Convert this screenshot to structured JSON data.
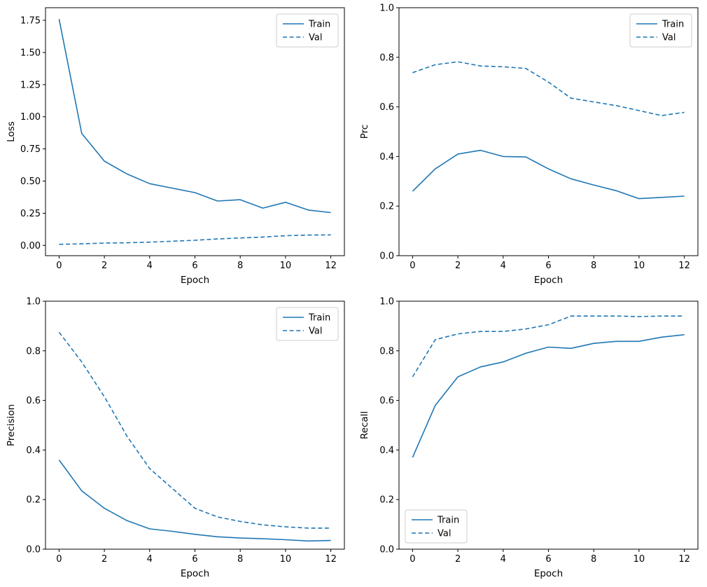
{
  "figure": {
    "background": "#ffffff",
    "line_color": "#1f77b4"
  },
  "chart_data": [
    {
      "type": "line",
      "title": "",
      "xlabel": "Epoch",
      "ylabel": "Loss",
      "color": "#1f77b4",
      "x": [
        0,
        1,
        2,
        3,
        4,
        5,
        6,
        7,
        8,
        9,
        10,
        11,
        12
      ],
      "xlim": [
        -0.6,
        12.6
      ],
      "ylim": [
        -0.08,
        1.848
      ],
      "xticks": [
        0,
        2,
        4,
        6,
        8,
        10,
        12
      ],
      "yticks": [
        0.0,
        0.25,
        0.5,
        0.75,
        1.0,
        1.25,
        1.5,
        1.75
      ],
      "ytick_labels": [
        "0.00",
        "0.25",
        "0.50",
        "0.75",
        "1.00",
        "1.25",
        "1.50",
        "1.75"
      ],
      "grid": false,
      "legend": {
        "position": "upper-right",
        "entries": [
          "Train",
          "Val"
        ]
      },
      "series": [
        {
          "name": "Train",
          "style": "solid",
          "values": [
            1.76,
            0.87,
            0.655,
            0.555,
            0.48,
            0.445,
            0.41,
            0.345,
            0.355,
            0.29,
            0.335,
            0.275,
            0.255
          ]
        },
        {
          "name": "Val",
          "style": "dashed",
          "values": [
            0.008,
            0.012,
            0.018,
            0.02,
            0.025,
            0.032,
            0.04,
            0.05,
            0.058,
            0.065,
            0.075,
            0.08,
            0.082
          ]
        }
      ]
    },
    {
      "type": "line",
      "title": "",
      "xlabel": "Epoch",
      "ylabel": "Prc",
      "color": "#1f77b4",
      "x": [
        0,
        1,
        2,
        3,
        4,
        5,
        6,
        7,
        8,
        9,
        10,
        11,
        12
      ],
      "xlim": [
        -0.6,
        12.6
      ],
      "ylim": [
        0.0,
        1.0
      ],
      "xticks": [
        0,
        2,
        4,
        6,
        8,
        10,
        12
      ],
      "yticks": [
        0.0,
        0.2,
        0.4,
        0.6,
        0.8,
        1.0
      ],
      "ytick_labels": [
        "0.0",
        "0.2",
        "0.4",
        "0.6",
        "0.8",
        "1.0"
      ],
      "grid": false,
      "legend": {
        "position": "upper-right",
        "entries": [
          "Train",
          "Val"
        ]
      },
      "series": [
        {
          "name": "Train",
          "style": "solid",
          "values": [
            0.26,
            0.35,
            0.41,
            0.425,
            0.4,
            0.398,
            0.35,
            0.31,
            0.285,
            0.262,
            0.23,
            0.235,
            0.24
          ]
        },
        {
          "name": "Val",
          "style": "dashed",
          "values": [
            0.738,
            0.77,
            0.782,
            0.765,
            0.762,
            0.755,
            0.7,
            0.635,
            0.62,
            0.605,
            0.585,
            0.565,
            0.578
          ]
        }
      ]
    },
    {
      "type": "line",
      "title": "",
      "xlabel": "Epoch",
      "ylabel": "Precision",
      "color": "#1f77b4",
      "x": [
        0,
        1,
        2,
        3,
        4,
        5,
        6,
        7,
        8,
        9,
        10,
        11,
        12
      ],
      "xlim": [
        -0.6,
        12.6
      ],
      "ylim": [
        0.0,
        1.0
      ],
      "xticks": [
        0,
        2,
        4,
        6,
        8,
        10,
        12
      ],
      "yticks": [
        0.0,
        0.2,
        0.4,
        0.6,
        0.8,
        1.0
      ],
      "ytick_labels": [
        "0.0",
        "0.2",
        "0.4",
        "0.6",
        "0.8",
        "1.0"
      ],
      "grid": false,
      "legend": {
        "position": "upper-right",
        "entries": [
          "Train",
          "Val"
        ]
      },
      "series": [
        {
          "name": "Train",
          "style": "solid",
          "values": [
            0.36,
            0.235,
            0.165,
            0.115,
            0.082,
            0.072,
            0.06,
            0.05,
            0.045,
            0.042,
            0.038,
            0.033,
            0.035
          ]
        },
        {
          "name": "Val",
          "style": "dashed",
          "values": [
            0.875,
            0.755,
            0.615,
            0.455,
            0.325,
            0.245,
            0.165,
            0.13,
            0.112,
            0.098,
            0.09,
            0.085,
            0.085
          ]
        }
      ]
    },
    {
      "type": "line",
      "title": "",
      "xlabel": "Epoch",
      "ylabel": "Recall",
      "color": "#1f77b4",
      "x": [
        0,
        1,
        2,
        3,
        4,
        5,
        6,
        7,
        8,
        9,
        10,
        11,
        12
      ],
      "xlim": [
        -0.6,
        12.6
      ],
      "ylim": [
        0.0,
        1.0
      ],
      "xticks": [
        0,
        2,
        4,
        6,
        8,
        10,
        12
      ],
      "yticks": [
        0.0,
        0.2,
        0.4,
        0.6,
        0.8,
        1.0
      ],
      "ytick_labels": [
        "0.0",
        "0.2",
        "0.4",
        "0.6",
        "0.8",
        "1.0"
      ],
      "grid": false,
      "legend": {
        "position": "lower-left",
        "entries": [
          "Train",
          "Val"
        ]
      },
      "series": [
        {
          "name": "Train",
          "style": "solid",
          "values": [
            0.37,
            0.58,
            0.695,
            0.735,
            0.755,
            0.79,
            0.815,
            0.81,
            0.83,
            0.838,
            0.838,
            0.855,
            0.865
          ]
        },
        {
          "name": "Val",
          "style": "dashed",
          "values": [
            0.695,
            0.845,
            0.868,
            0.878,
            0.878,
            0.888,
            0.905,
            0.94,
            0.94,
            0.94,
            0.938,
            0.94,
            0.94
          ]
        }
      ]
    }
  ]
}
